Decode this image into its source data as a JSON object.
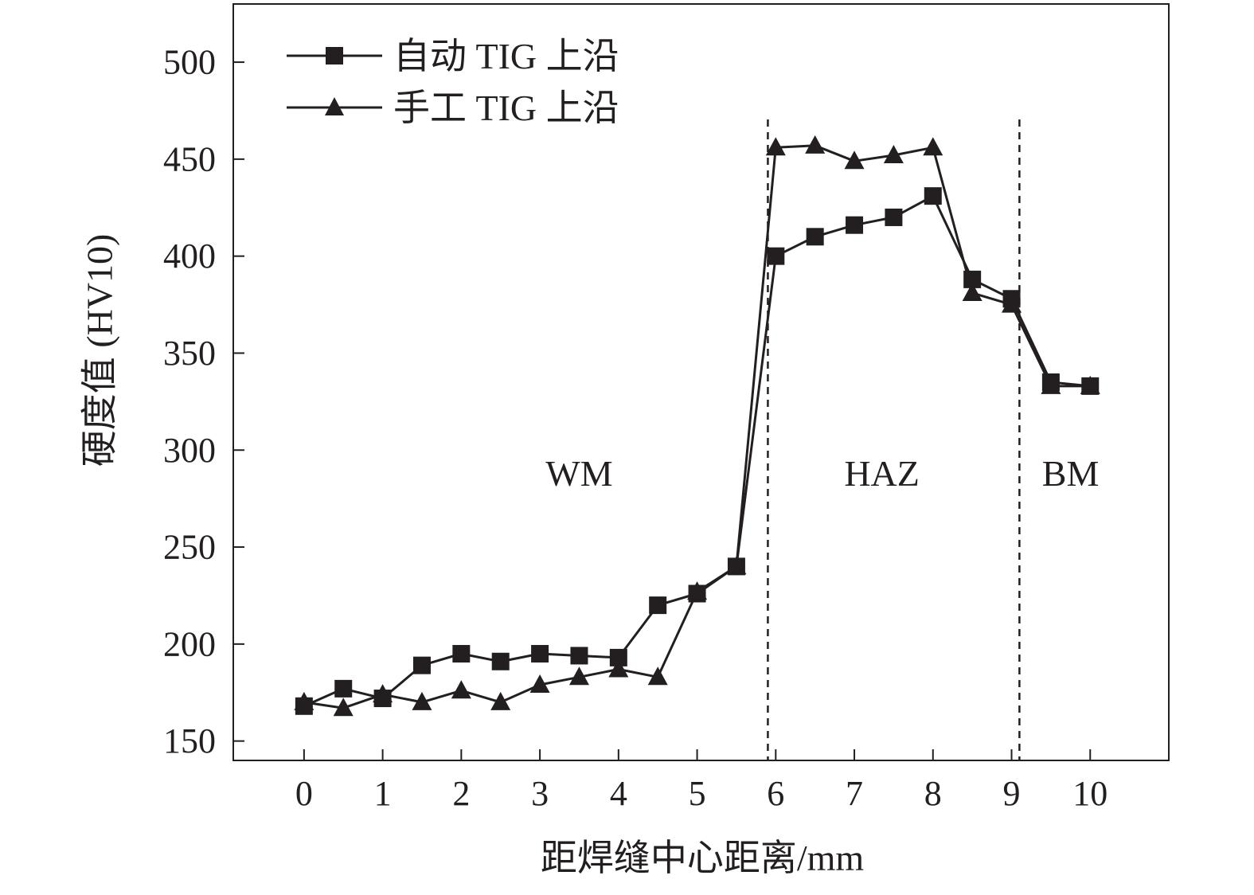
{
  "chart_data": {
    "type": "line",
    "title": "",
    "xlabel": "距焊缝中心距离/mm",
    "ylabel": "硬度值 (HV10)",
    "xlim": [
      -0.9,
      11
    ],
    "ylim": [
      140,
      530
    ],
    "xticks": [
      0,
      1,
      2,
      3,
      4,
      5,
      6,
      7,
      8,
      9,
      10
    ],
    "yticks": [
      150,
      200,
      250,
      300,
      350,
      400,
      450,
      500
    ],
    "x": [
      0,
      0.5,
      1,
      1.5,
      2,
      2.5,
      3,
      3.5,
      4,
      4.5,
      5,
      5.5,
      6,
      6.5,
      7,
      7.5,
      8,
      8.5,
      9,
      9.5,
      10
    ],
    "series": [
      {
        "name": "自动 TIG 上沿",
        "marker": "square",
        "values": [
          168,
          177,
          172,
          189,
          195,
          191,
          195,
          194,
          193,
          220,
          226,
          240,
          400,
          410,
          416,
          420,
          431,
          388,
          378,
          335,
          333
        ]
      },
      {
        "name": "手工 TIG 上沿",
        "marker": "triangle",
        "values": [
          170,
          167,
          174,
          170,
          176,
          170,
          179,
          183,
          187,
          183,
          227,
          240,
          456,
          457,
          449,
          452,
          456,
          381,
          375,
          333,
          333
        ]
      }
    ],
    "region_boundaries": [
      5.9,
      9.1
    ],
    "regions": [
      {
        "label": "WM",
        "x": 3.5
      },
      {
        "label": "HAZ",
        "x": 7.35
      },
      {
        "label": "BM",
        "x": 9.75
      }
    ],
    "region_label_y": 288,
    "legend": "top-left",
    "grid": false,
    "colors": {
      "line": "#231f20",
      "marker": "#231f20",
      "axis": "#231f20"
    }
  }
}
